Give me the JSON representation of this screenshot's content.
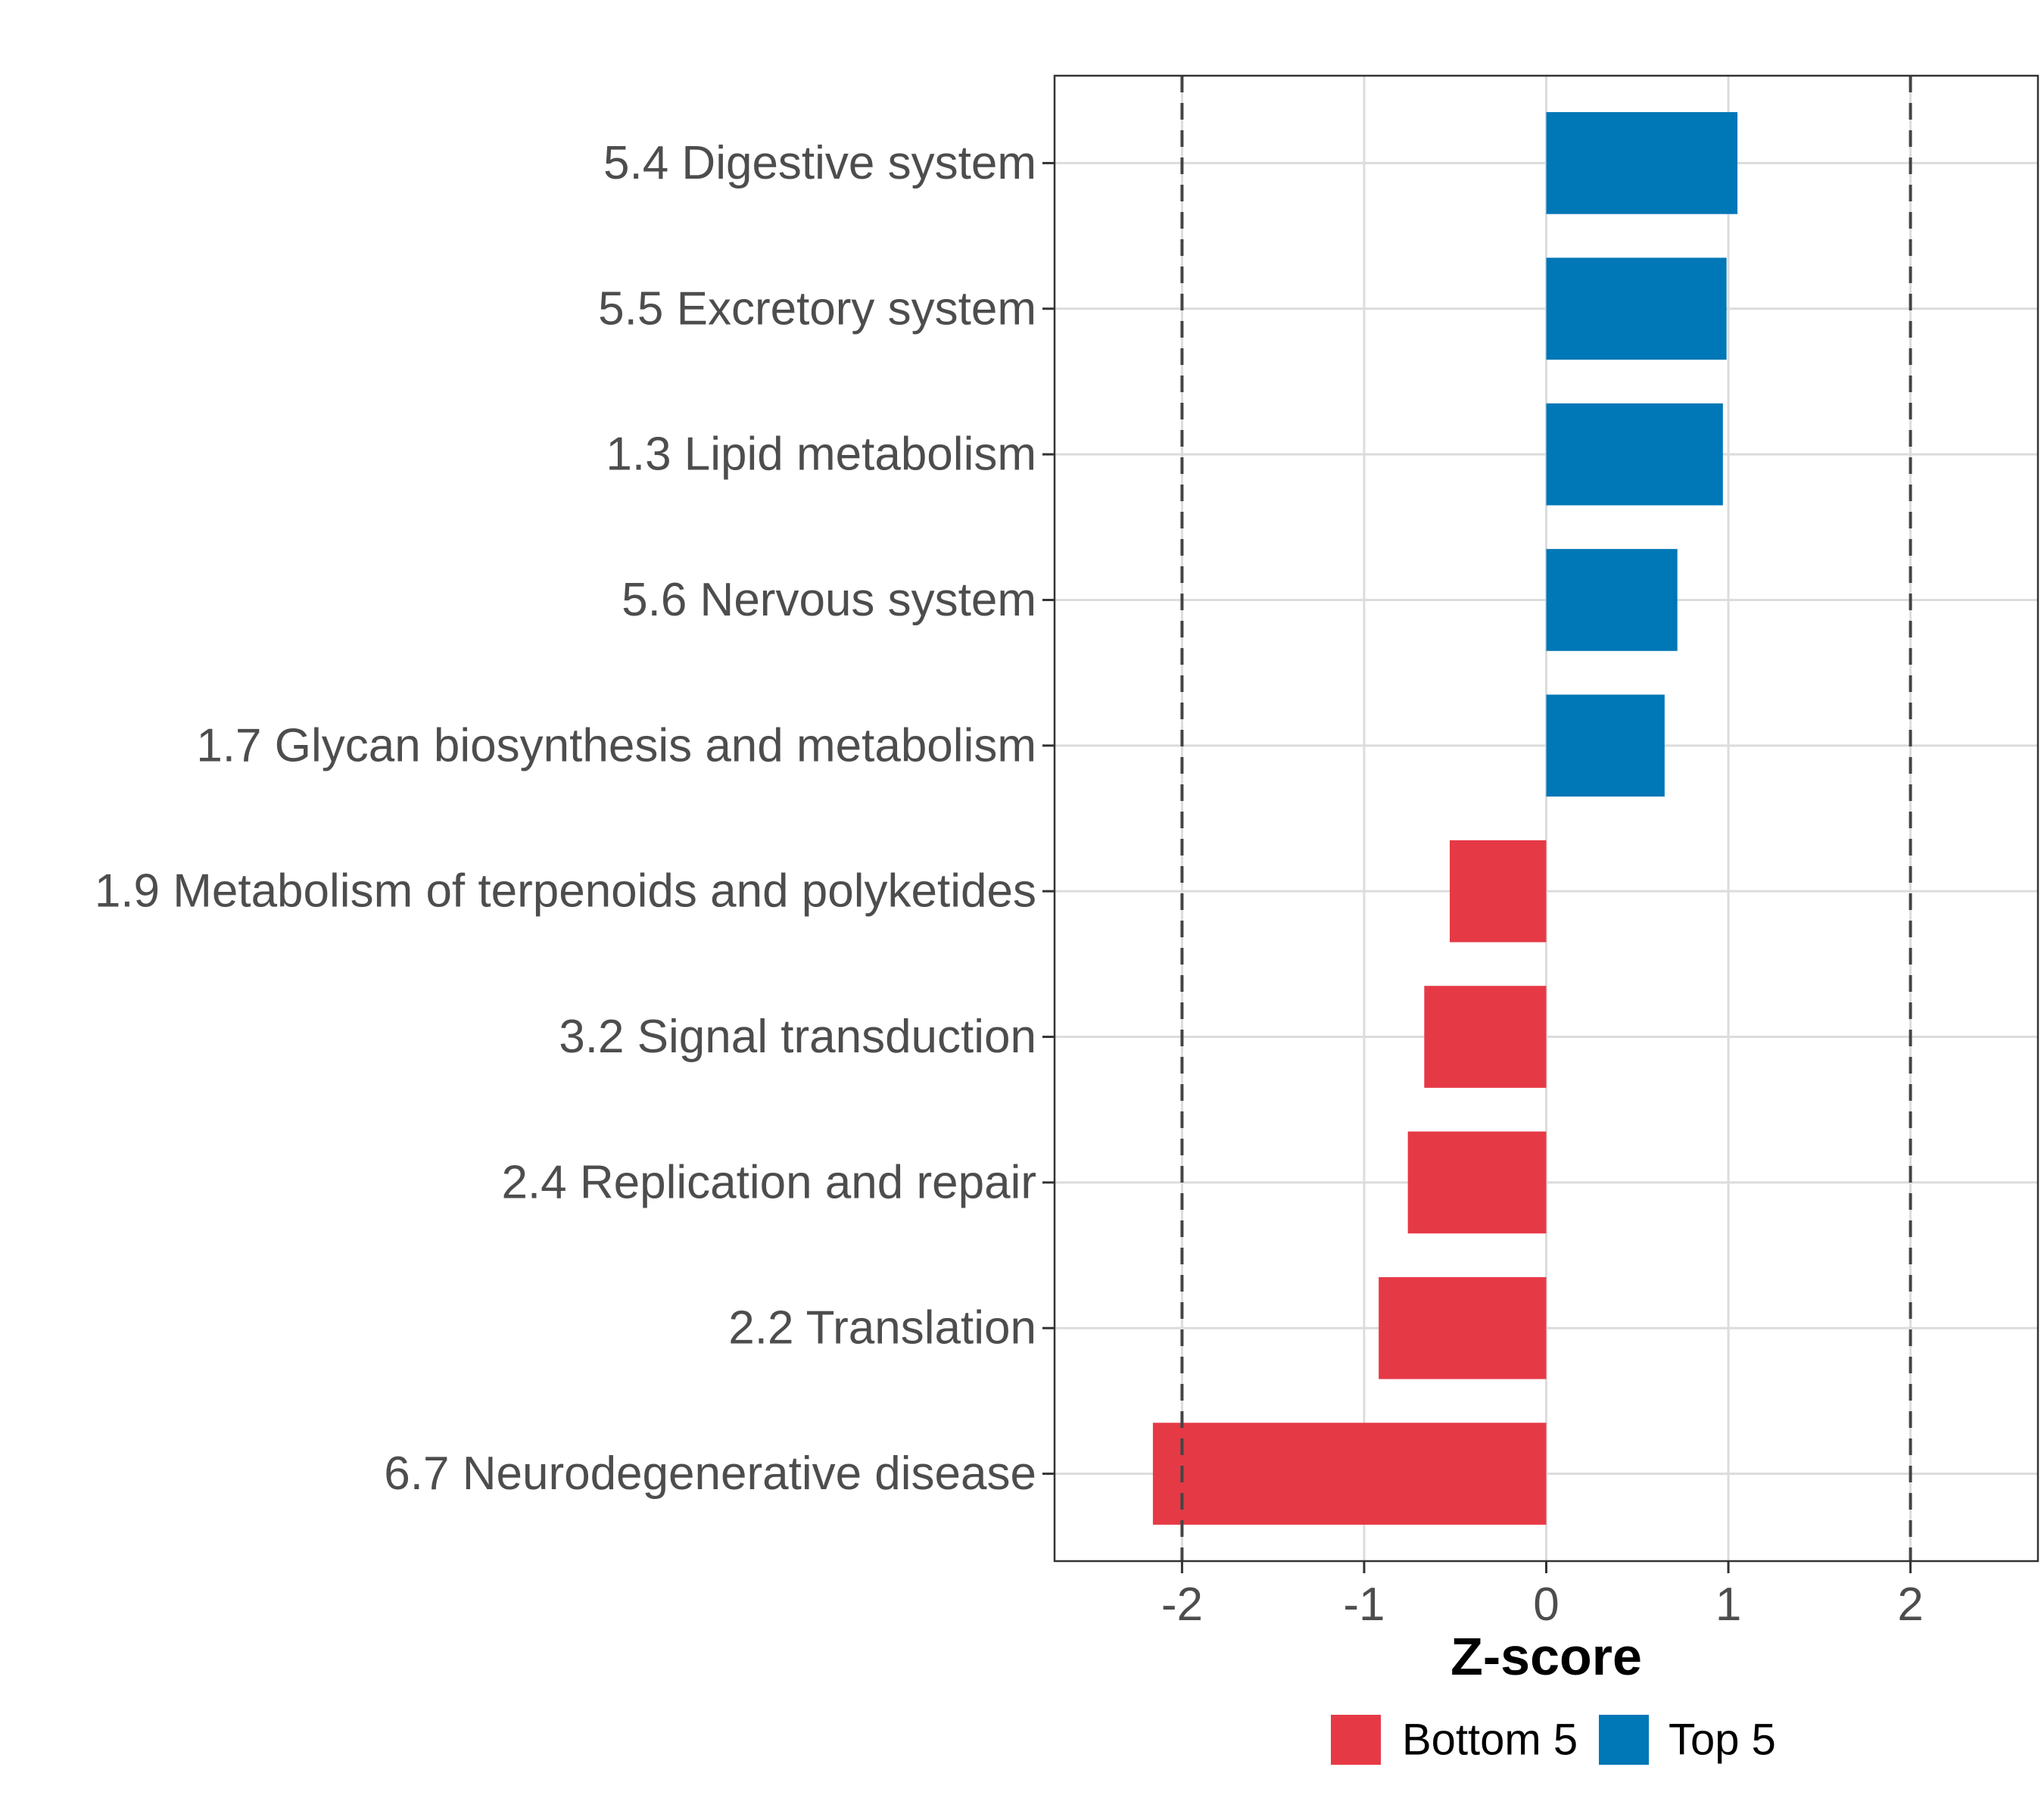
{
  "chart_data": {
    "type": "bar",
    "orientation": "horizontal",
    "title": "",
    "xlabel": "Z-score",
    "ylabel": "",
    "xlim": [
      -2.7,
      2.7
    ],
    "xticks": [
      -2,
      -1,
      0,
      1,
      2
    ],
    "xtick_labels": [
      "-2",
      "-1",
      "0",
      "1",
      "2"
    ],
    "reference_lines": [
      -2,
      2
    ],
    "grid": true,
    "categories": [
      "5.4 Digestive system",
      "5.5 Excretory system",
      "1.3 Lipid metabolism",
      "5.6 Nervous system",
      "1.7 Glycan biosynthesis and metabolism",
      "1.9 Metabolism of terpenoids and polyketides",
      "3.2 Signal transduction",
      "2.4 Replication and repair",
      "2.2 Translation",
      "6.7 Neurodegenerative disease"
    ],
    "values": [
      1.05,
      0.99,
      0.97,
      0.72,
      0.65,
      -0.53,
      -0.67,
      -0.76,
      -0.92,
      -2.16
    ],
    "groups": [
      "Top 5",
      "Top 5",
      "Top 5",
      "Top 5",
      "Top 5",
      "Bottom 5",
      "Bottom 5",
      "Bottom 5",
      "Bottom 5",
      "Bottom 5"
    ],
    "legend": {
      "position": "bottom",
      "entries": [
        {
          "label": "Bottom 5",
          "color": "#e63946"
        },
        {
          "label": "Top 5",
          "color": "#0077b6"
        }
      ]
    }
  }
}
